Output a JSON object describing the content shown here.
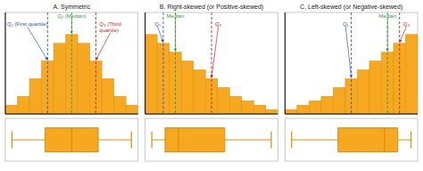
{
  "chart_data": [
    {
      "type": "bar",
      "title": "A. Symmetric",
      "categories": [
        null,
        null,
        null,
        null,
        null,
        null,
        null,
        null,
        null,
        null,
        null
      ],
      "values": [
        1,
        2,
        4,
        6,
        8,
        9,
        8,
        6,
        4,
        2,
        1
      ],
      "color": "#F5A820",
      "ylim": [
        0,
        11.5
      ],
      "tick_labels": false,
      "annotations": [
        {
          "text": "Q₂ (Median)",
          "x": 5,
          "color": "#2e9e2e"
        },
        {
          "text": "Q₁ (First quartile)",
          "x": 3,
          "color": "#3355bb"
        },
        {
          "text": "Q₃ (Third\nquartile)",
          "x": 7,
          "color": "#cc2222"
        }
      ],
      "box": {
        "wl": 0.5,
        "q1": 3,
        "med": 5,
        "q3": 7,
        "wr": 9.5,
        "xlim": [
          0,
          10
        ],
        "color": "#D4900A"
      }
    },
    {
      "type": "bar",
      "title": "B. Right-skewed (or Positive-skewed)",
      "categories": [
        null,
        null,
        null,
        null,
        null,
        null,
        null,
        null,
        null,
        null,
        null
      ],
      "values": [
        9,
        8,
        7,
        6,
        5,
        4,
        3,
        2,
        1.5,
        1,
        0.5
      ],
      "color": "#F5A820",
      "ylim": [
        0,
        11.5
      ],
      "tick_labels": false,
      "annotations": [
        {
          "text": "Median",
          "x": 2,
          "color": "#2e9e2e"
        },
        {
          "text": "Q₁",
          "x": 1,
          "color": "#3355bb"
        },
        {
          "text": "Q₃",
          "x": 5,
          "color": "#cc2222"
        }
      ],
      "box": {
        "wl": 0.5,
        "q1": 1.5,
        "med": 2.5,
        "q3": 6.0,
        "wr": 9.5,
        "xlim": [
          0,
          10
        ],
        "color": "#D4900A"
      }
    },
    {
      "type": "bar",
      "title": "C. Left-skewed (or Negative-skewed)",
      "categories": [
        null,
        null,
        null,
        null,
        null,
        null,
        null,
        null,
        null,
        null,
        null
      ],
      "values": [
        0.5,
        1,
        1.5,
        2,
        3,
        4,
        5,
        6,
        7,
        8,
        9
      ],
      "color": "#F5A820",
      "ylim": [
        0,
        11.5
      ],
      "tick_labels": false,
      "annotations": [
        {
          "text": "Median",
          "x": 8,
          "color": "#2e9e2e"
        },
        {
          "text": "Q₁",
          "x": 5,
          "color": "#3355bb"
        },
        {
          "text": "Q₃",
          "x": 9,
          "color": "#cc2222"
        }
      ],
      "box": {
        "wl": 0.5,
        "q1": 4.0,
        "med": 7.5,
        "q3": 8.5,
        "wr": 9.5,
        "xlim": [
          0,
          10
        ],
        "color": "#D4900A"
      }
    }
  ]
}
